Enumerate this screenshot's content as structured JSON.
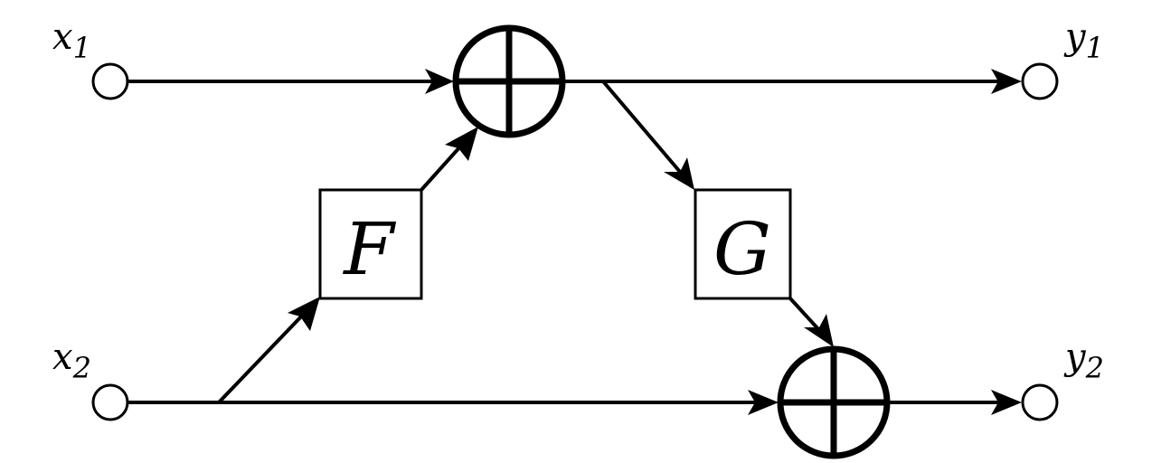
{
  "diagram": {
    "colors": {
      "stroke": "#000000",
      "background": "#ffffff"
    },
    "inputs": [
      {
        "name": "x",
        "subscript": "1"
      },
      {
        "name": "x",
        "subscript": "2"
      }
    ],
    "outputs": [
      {
        "name": "y",
        "subscript": "1"
      },
      {
        "name": "y",
        "subscript": "2"
      }
    ],
    "blocks": {
      "f": {
        "label": "F"
      },
      "g": {
        "label": "G"
      }
    },
    "summing_junctions": [
      "sum-junction-top",
      "sum-junction-bottom"
    ]
  }
}
